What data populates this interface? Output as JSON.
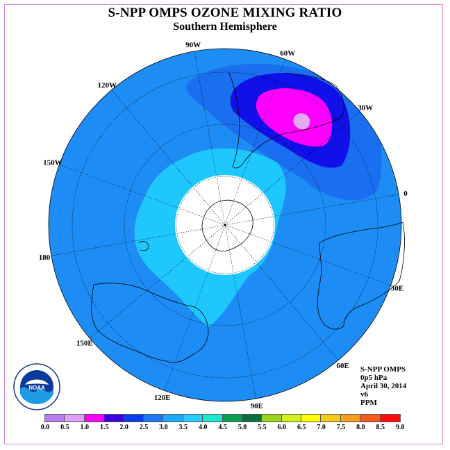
{
  "title": "S-NPP OMPS OZONE MIXING RATIO",
  "subtitle": "Southern Hemisphere",
  "info": {
    "instrument": "S-NPP OMPS",
    "level": "0p5 hPa",
    "date": "April 30, 2014",
    "version": "v6",
    "units": "PPM"
  },
  "longitude_labels": [
    "90W",
    "60W",
    "30W",
    "0",
    "30E",
    "60E",
    "90E",
    "120E",
    "150E",
    "180",
    "150W",
    "120W"
  ],
  "colorbar": {
    "ticks": [
      "0.0",
      "0.5",
      "1.0",
      "1.5",
      "2.0",
      "2.5",
      "3.0",
      "3.5",
      "4.0",
      "4.5",
      "5.0",
      "5.5",
      "6.0",
      "6.5",
      "7.0",
      "7.5",
      "8.0",
      "8.5",
      "9.0"
    ],
    "colors": [
      "#b57ff0",
      "#dda0f5",
      "#ff00ff",
      "#3b00e0",
      "#0a3cf0",
      "#1e78f5",
      "#1ea8ff",
      "#28ccff",
      "#1ee8d2",
      "#0aa050",
      "#0a6e3c",
      "#9ad21e",
      "#d2ef1e",
      "#ffff00",
      "#f5c81e",
      "#f5a01e",
      "#f55a1e",
      "#ff0a0a",
      "#8c5a3c"
    ]
  },
  "logo": {
    "name": "noaa-logo",
    "text": "NOAA"
  },
  "map": {
    "projection": "polar-stereographic-south",
    "background_color": "#1e8cf5",
    "pole_mask_color": "#ffffff"
  }
}
